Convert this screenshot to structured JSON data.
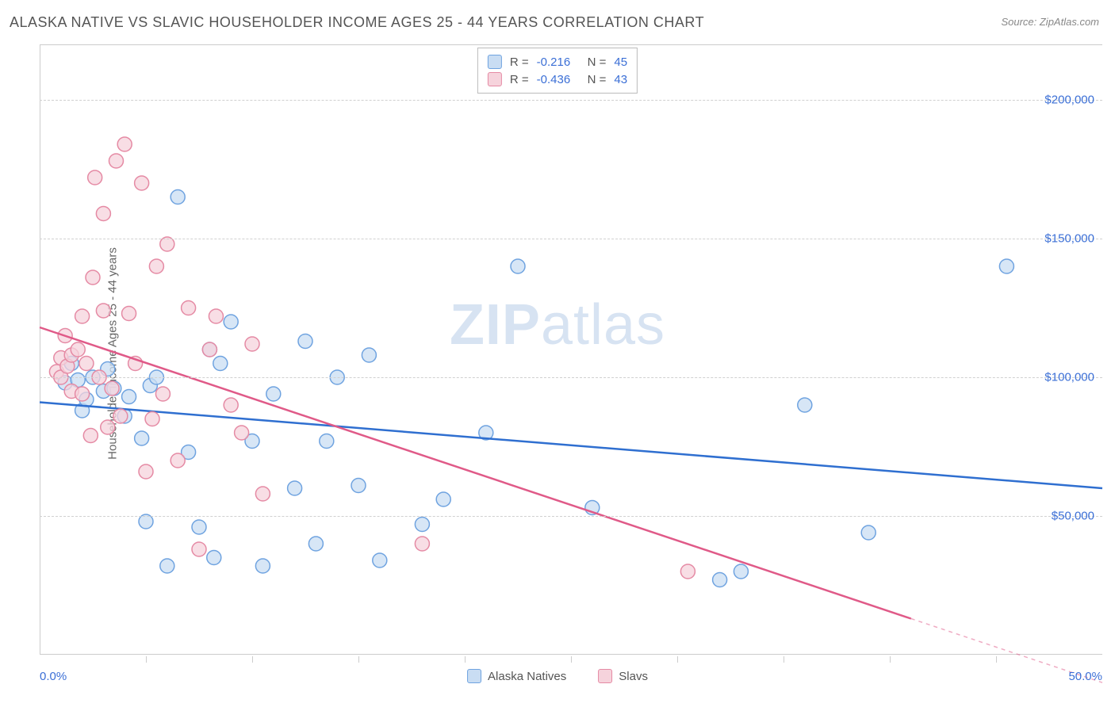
{
  "title": "ALASKA NATIVE VS SLAVIC HOUSEHOLDER INCOME AGES 25 - 44 YEARS CORRELATION CHART",
  "source": "Source: ZipAtlas.com",
  "ylabel": "Householder Income Ages 25 - 44 years",
  "watermark_zip": "ZIP",
  "watermark_atlas": "atlas",
  "chart": {
    "type": "scatter",
    "background_color": "#ffffff",
    "grid_color": "#d0d0d0",
    "border_color": "#cccccc",
    "xlim": [
      0,
      50
    ],
    "ylim": [
      0,
      220000
    ],
    "x_start_label": "0.0%",
    "x_end_label": "50.0%",
    "y_ticks": [
      50000,
      100000,
      150000,
      200000
    ],
    "y_tick_labels": [
      "$50,000",
      "$100,000",
      "$150,000",
      "$200,000"
    ],
    "x_tick_positions": [
      5,
      10,
      15,
      20,
      25,
      30,
      35,
      40,
      45
    ],
    "marker_radius": 9,
    "marker_stroke_width": 1.5,
    "line_width": 2.5,
    "series": [
      {
        "name": "Alaska Natives",
        "fill": "#c9ddf3",
        "stroke": "#6fa3e0",
        "line_color": "#2f6fd0",
        "R": "-0.216",
        "N": "45",
        "trend": {
          "x1": 0,
          "y1": 91000,
          "x2": 50,
          "y2": 60000,
          "extrap_from_x": 50
        },
        "points": [
          [
            1.2,
            98000
          ],
          [
            1.5,
            105000
          ],
          [
            1.8,
            99000
          ],
          [
            2.0,
            88000
          ],
          [
            2.2,
            92000
          ],
          [
            2.5,
            100000
          ],
          [
            3.0,
            95000
          ],
          [
            3.2,
            103000
          ],
          [
            3.5,
            96000
          ],
          [
            4.0,
            86000
          ],
          [
            4.2,
            93000
          ],
          [
            4.8,
            78000
          ],
          [
            5.0,
            48000
          ],
          [
            5.2,
            97000
          ],
          [
            5.5,
            100000
          ],
          [
            6.0,
            32000
          ],
          [
            6.5,
            165000
          ],
          [
            7.0,
            73000
          ],
          [
            7.5,
            46000
          ],
          [
            8.0,
            110000
          ],
          [
            8.2,
            35000
          ],
          [
            8.5,
            105000
          ],
          [
            9.0,
            120000
          ],
          [
            10.0,
            77000
          ],
          [
            10.5,
            32000
          ],
          [
            11.0,
            94000
          ],
          [
            12.0,
            60000
          ],
          [
            12.5,
            113000
          ],
          [
            13.0,
            40000
          ],
          [
            13.5,
            77000
          ],
          [
            14.0,
            100000
          ],
          [
            15.0,
            61000
          ],
          [
            15.5,
            108000
          ],
          [
            16.0,
            34000
          ],
          [
            18.0,
            47000
          ],
          [
            19.0,
            56000
          ],
          [
            21.0,
            80000
          ],
          [
            22.5,
            140000
          ],
          [
            26.0,
            53000
          ],
          [
            32.0,
            27000
          ],
          [
            33.0,
            30000
          ],
          [
            36.0,
            90000
          ],
          [
            39.0,
            44000
          ],
          [
            45.5,
            140000
          ]
        ]
      },
      {
        "name": "Slavs",
        "fill": "#f6d3dc",
        "stroke": "#e58aa4",
        "line_color": "#e05a88",
        "R": "-0.436",
        "N": "43",
        "trend": {
          "x1": 0,
          "y1": 118000,
          "x2": 41,
          "y2": 13000,
          "extrap_from_x": 41
        },
        "points": [
          [
            0.8,
            102000
          ],
          [
            1.0,
            107000
          ],
          [
            1.0,
            100000
          ],
          [
            1.2,
            115000
          ],
          [
            1.3,
            104000
          ],
          [
            1.5,
            95000
          ],
          [
            1.5,
            108000
          ],
          [
            1.8,
            110000
          ],
          [
            2.0,
            122000
          ],
          [
            2.0,
            94000
          ],
          [
            2.2,
            105000
          ],
          [
            2.4,
            79000
          ],
          [
            2.5,
            136000
          ],
          [
            2.6,
            172000
          ],
          [
            2.8,
            100000
          ],
          [
            3.0,
            124000
          ],
          [
            3.0,
            159000
          ],
          [
            3.2,
            82000
          ],
          [
            3.4,
            96000
          ],
          [
            3.6,
            178000
          ],
          [
            3.8,
            86000
          ],
          [
            4.0,
            184000
          ],
          [
            4.2,
            123000
          ],
          [
            4.5,
            105000
          ],
          [
            4.8,
            170000
          ],
          [
            5.0,
            66000
          ],
          [
            5.3,
            85000
          ],
          [
            5.5,
            140000
          ],
          [
            5.8,
            94000
          ],
          [
            6.0,
            148000
          ],
          [
            6.5,
            70000
          ],
          [
            7.0,
            125000
          ],
          [
            7.5,
            38000
          ],
          [
            8.0,
            110000
          ],
          [
            8.3,
            122000
          ],
          [
            9.0,
            90000
          ],
          [
            9.5,
            80000
          ],
          [
            10.0,
            112000
          ],
          [
            10.5,
            58000
          ],
          [
            18.0,
            40000
          ],
          [
            30.5,
            30000
          ]
        ]
      }
    ],
    "legend_top": {
      "rows": [
        {
          "swatch_fill": "#c9ddf3",
          "swatch_stroke": "#6fa3e0",
          "r_label": "R =",
          "r_val": "-0.216",
          "n_label": "N =",
          "n_val": "45"
        },
        {
          "swatch_fill": "#f6d3dc",
          "swatch_stroke": "#e58aa4",
          "r_label": "R =",
          "r_val": "-0.436",
          "n_label": "N =",
          "n_val": "43"
        }
      ]
    },
    "legend_bottom": [
      {
        "swatch_fill": "#c9ddf3",
        "swatch_stroke": "#6fa3e0",
        "label": "Alaska Natives"
      },
      {
        "swatch_fill": "#f6d3dc",
        "swatch_stroke": "#e58aa4",
        "label": "Slavs"
      }
    ]
  }
}
